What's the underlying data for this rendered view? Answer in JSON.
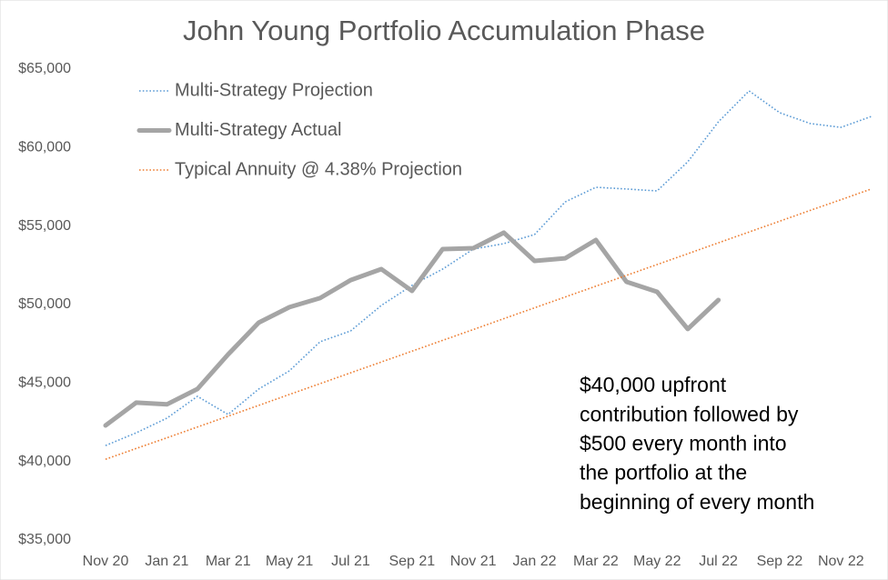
{
  "chart_data": {
    "type": "line",
    "title": "John Young Portfolio Accumulation Phase",
    "categories": [
      "Nov 20",
      null,
      "Jan 21",
      null,
      "Mar 21",
      null,
      "May 21",
      null,
      "Jul 21",
      null,
      "Sep 21",
      null,
      "Nov 21",
      null,
      "Jan 22",
      null,
      "Mar 22",
      null,
      "May 22",
      null,
      "Jul 22",
      null,
      "Sep 22",
      null,
      "Nov 22",
      null
    ],
    "series": [
      {
        "name": "Multi-Strategy Projection",
        "color": "#5b9bd5",
        "style": "dotted",
        "values": [
          41020,
          41830,
          42760,
          44150,
          43000,
          44620,
          45780,
          47630,
          48320,
          49940,
          51220,
          52260,
          53530,
          53880,
          54460,
          56540,
          57470,
          57360,
          57240,
          59090,
          61640,
          63610,
          62220,
          61530,
          61290,
          61990
        ]
      },
      {
        "name": "Multi-Strategy Actual",
        "color": "#a5a5a5",
        "style": "solid",
        "values": [
          42300,
          43750,
          43640,
          44620,
          46820,
          48850,
          49830,
          50410,
          51560,
          52260,
          50870,
          53530,
          53590,
          54580,
          52780,
          52950,
          54110,
          51450,
          50810,
          48440,
          50290,
          null,
          null,
          null,
          null,
          null
        ]
      },
      {
        "name": "Typical Annuity @ 4.38% Projection",
        "color": "#ed7d31",
        "style": "dotted",
        "values": [
          40140,
          40830,
          41510,
          42200,
          42890,
          43580,
          44270,
          44960,
          45650,
          46340,
          47030,
          47720,
          48410,
          49100,
          49790,
          50480,
          51170,
          51860,
          52550,
          53240,
          53930,
          54620,
          55310,
          56000,
          56680,
          57370
        ]
      }
    ],
    "ylim": [
      35000,
      65000
    ],
    "yticks": [
      {
        "value": 35000,
        "label": "$35,000"
      },
      {
        "value": 40000,
        "label": "$40,000"
      },
      {
        "value": 45000,
        "label": "$45,000"
      },
      {
        "value": 50000,
        "label": "$50,000"
      },
      {
        "value": 55000,
        "label": "$55,000"
      },
      {
        "value": 60000,
        "label": "$60,000"
      },
      {
        "value": 65000,
        "label": "$65,000"
      }
    ],
    "grid": false,
    "legend": "upper left",
    "annotation": [
      "$40,000 upfront",
      "contribution followed by",
      "$500 every month into",
      "the portfolio at the",
      "beginning of every month"
    ]
  }
}
